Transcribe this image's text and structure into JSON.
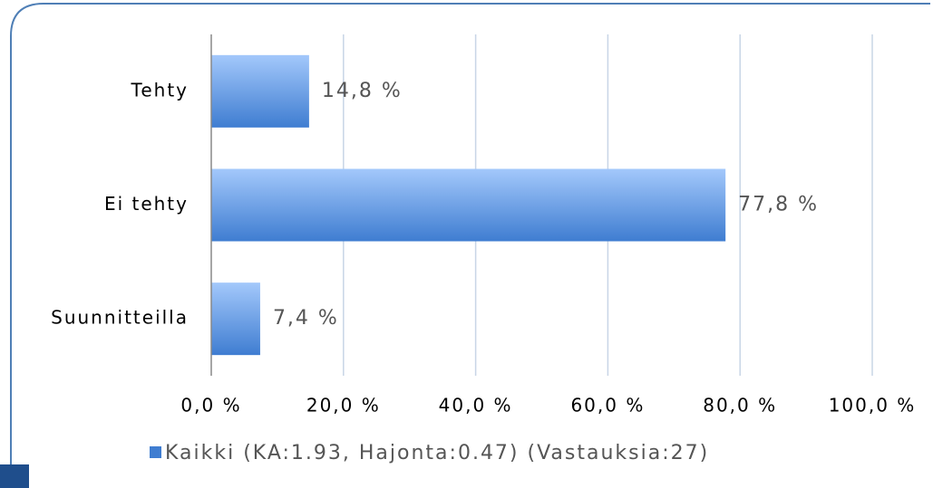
{
  "chart_data": {
    "type": "barh",
    "categories": [
      "Tehty",
      "Ei tehty",
      "Suunnitteilla"
    ],
    "series": [
      {
        "name": "Kaikki (KA:1.93, Hajonta:0.47) (Vastauksia:27)",
        "color": "#3f7dd1",
        "values": [
          14.8,
          77.8,
          7.4
        ],
        "value_labels": [
          "14,8 %",
          "77,8 %",
          "7,4 %"
        ]
      }
    ],
    "xlim": [
      0,
      100
    ],
    "xticks": [
      {
        "value": 0,
        "label": "0,0 %"
      },
      {
        "value": 20,
        "label": "20,0 %"
      },
      {
        "value": 40,
        "label": "40,0 %"
      },
      {
        "value": 60,
        "label": "60,0 %"
      },
      {
        "value": 80,
        "label": "80,0 %"
      },
      {
        "value": 100,
        "label": "100,0 %"
      }
    ],
    "grid": true,
    "legend": "bottom"
  }
}
